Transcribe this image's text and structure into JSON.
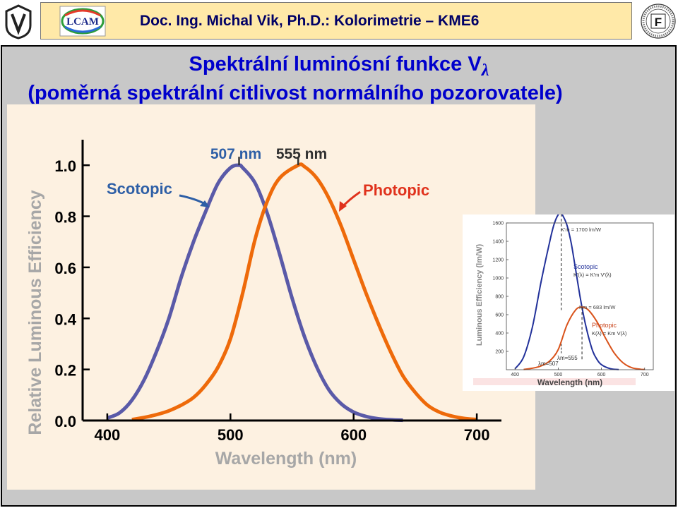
{
  "header": {
    "title": "Doc. Ing. Michal Vik, Ph.D.: Kolorimetrie – KME6",
    "lcam_logo_text": "LCAM",
    "seal_letter": "F"
  },
  "slide": {
    "title_line1": "Spektrální luminósní funkce V",
    "title_symbol": "λ",
    "title_line2": "(poměrná spektrální citlivost normálního pozorovatele)"
  },
  "colors": {
    "slide_title": "#0000cc",
    "header_text": "#000066",
    "scotopic": "#5a5aa8",
    "photopic": "#ee6a0a",
    "annotation_blue": "#2e5fa6",
    "annotation_red": "#e0321c",
    "main_background": "#fdf1e1"
  },
  "chart_data": [
    {
      "type": "line",
      "title": "",
      "xlabel": "Wavelength (nm)",
      "ylabel": "Relative Luminous Efficiency",
      "xlim": [
        380,
        720
      ],
      "ylim": [
        0,
        1.1
      ],
      "x_ticks": [
        "400",
        "500",
        "600",
        "700"
      ],
      "x_tick_values": [
        400,
        500,
        600,
        700
      ],
      "y_ticks": [
        "0.0",
        "0.2",
        "0.4",
        "0.6",
        "0.8",
        "1.0"
      ],
      "y_tick_values": [
        0,
        0.2,
        0.4,
        0.6,
        0.8,
        1.0
      ],
      "annotations": [
        {
          "text": "507 nm",
          "x": 507
        },
        {
          "text": "555 nm",
          "x": 555
        }
      ],
      "series": [
        {
          "name": "Scotopic",
          "color": "#5a5aa8",
          "x": [
            400,
            410,
            420,
            430,
            440,
            450,
            460,
            470,
            480,
            490,
            500,
            507,
            510,
            520,
            530,
            540,
            550,
            560,
            570,
            580,
            590,
            600,
            610,
            620,
            630,
            640
          ],
          "y": [
            0.01,
            0.03,
            0.08,
            0.16,
            0.27,
            0.4,
            0.56,
            0.7,
            0.82,
            0.93,
            0.99,
            1.0,
            0.99,
            0.93,
            0.81,
            0.65,
            0.48,
            0.33,
            0.21,
            0.12,
            0.065,
            0.033,
            0.016,
            0.007,
            0.003,
            0.001
          ]
        },
        {
          "name": "Photopic",
          "color": "#ee6a0a",
          "x": [
            420,
            430,
            440,
            450,
            460,
            470,
            480,
            490,
            500,
            510,
            520,
            530,
            540,
            555,
            560,
            570,
            580,
            590,
            600,
            610,
            620,
            630,
            640,
            650,
            660,
            670,
            680,
            690,
            700
          ],
          "y": [
            0.004,
            0.012,
            0.023,
            0.038,
            0.06,
            0.09,
            0.14,
            0.21,
            0.32,
            0.5,
            0.71,
            0.86,
            0.95,
            1.0,
            0.995,
            0.95,
            0.87,
            0.76,
            0.63,
            0.5,
            0.38,
            0.27,
            0.175,
            0.11,
            0.06,
            0.032,
            0.017,
            0.008,
            0.004
          ]
        }
      ]
    },
    {
      "type": "line",
      "title": "",
      "xlabel": "Wavelength (nm)",
      "ylabel": "Luminous Efficiency (lm/W)",
      "xlim": [
        380,
        720
      ],
      "ylim": [
        0,
        1600
      ],
      "x_ticks": [
        "400",
        "500",
        "600",
        "700"
      ],
      "x_tick_values": [
        400,
        500,
        600,
        700
      ],
      "y_ticks": [
        "200",
        "400",
        "600",
        "800",
        "1000",
        "1200",
        "1400",
        "1600"
      ],
      "y_tick_values": [
        200,
        400,
        600,
        800,
        1000,
        1200,
        1400,
        1600
      ],
      "annotations": [
        {
          "text": "K'm = 1700 lm/W"
        },
        {
          "text": "Scotopic"
        },
        {
          "text": "K'(λ) = K'm V'(λ)"
        },
        {
          "text": "Km = 683 lm/W"
        },
        {
          "text": "Photopic"
        },
        {
          "text": "K(λ) = Km V(λ)"
        },
        {
          "text": "λm=555"
        },
        {
          "text": "λm=507"
        }
      ],
      "series": [
        {
          "name": "Scotopic",
          "color": "#22319a",
          "x": [
            400,
            420,
            440,
            460,
            480,
            490,
            500,
            507,
            510,
            520,
            530,
            540,
            550,
            560,
            570,
            580,
            590,
            600,
            620,
            640
          ],
          "y": [
            10,
            140,
            460,
            950,
            1390,
            1580,
            1690,
            1700,
            1685,
            1580,
            1380,
            1100,
            810,
            560,
            360,
            200,
            110,
            55,
            12,
            2
          ]
        },
        {
          "name": "Photopic",
          "color": "#d9521a",
          "x": [
            420,
            440,
            460,
            480,
            500,
            520,
            540,
            555,
            570,
            590,
            610,
            630,
            650,
            670,
            690,
            700
          ],
          "y": [
            3,
            16,
            41,
            95,
            220,
            485,
            650,
            683,
            650,
            520,
            340,
            180,
            75,
            22,
            5,
            3
          ]
        }
      ]
    }
  ]
}
